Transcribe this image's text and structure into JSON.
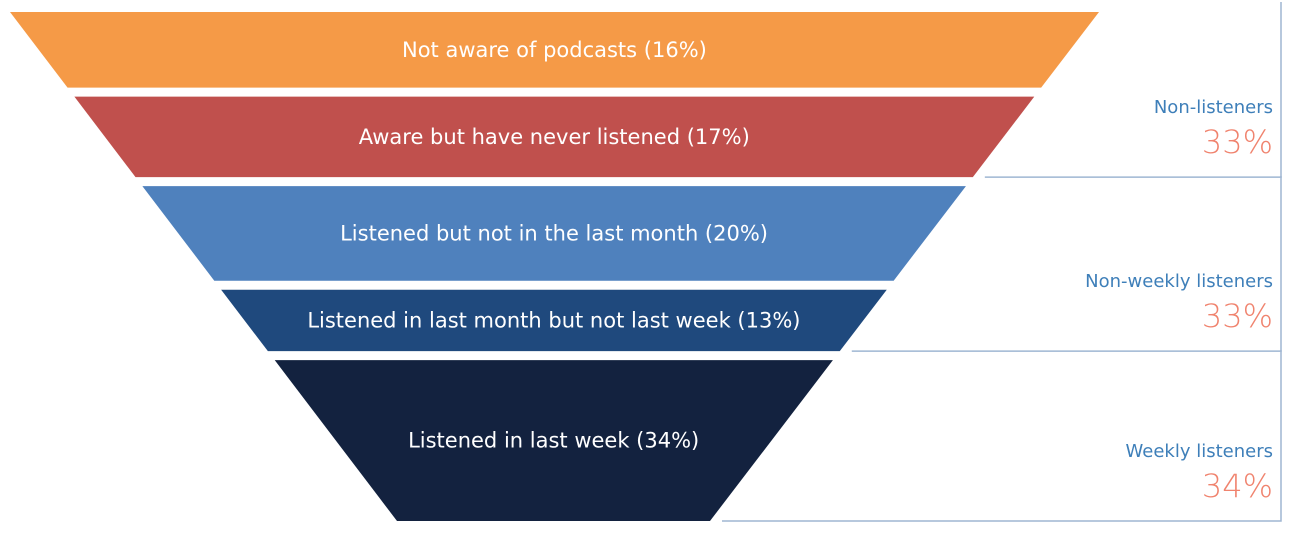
{
  "chart_data": {
    "type": "funnel",
    "stages": [
      {
        "label": "Not aware of podcasts (16%)",
        "value": 16,
        "color": "#f59a47"
      },
      {
        "label": "Aware but have never listened (17%)",
        "value": 17,
        "color": "#c0504d"
      },
      {
        "label": "Listened but not in the last month (20%)",
        "value": 20,
        "color": "#4f81bd"
      },
      {
        "label": "Listened in last month but not last week (13%)",
        "value": 13,
        "color": "#1f497d"
      },
      {
        "label": "Listened in last week (34%)",
        "value": 34,
        "color": "#13223f"
      }
    ],
    "groups": [
      {
        "name": "Non-listeners",
        "value_label": "33%",
        "value": 33,
        "stages": [
          0,
          1
        ]
      },
      {
        "name": "Non-weekly listeners",
        "value_label": "33%",
        "value": 33,
        "stages": [
          2,
          3
        ]
      },
      {
        "name": "Weekly listeners",
        "value_label": "34%",
        "value": 34,
        "stages": [
          4
        ]
      }
    ],
    "colors": {
      "group_name": "#3e7fb9",
      "group_value": "#f0836e",
      "bracket": "#9fb6d2"
    }
  }
}
